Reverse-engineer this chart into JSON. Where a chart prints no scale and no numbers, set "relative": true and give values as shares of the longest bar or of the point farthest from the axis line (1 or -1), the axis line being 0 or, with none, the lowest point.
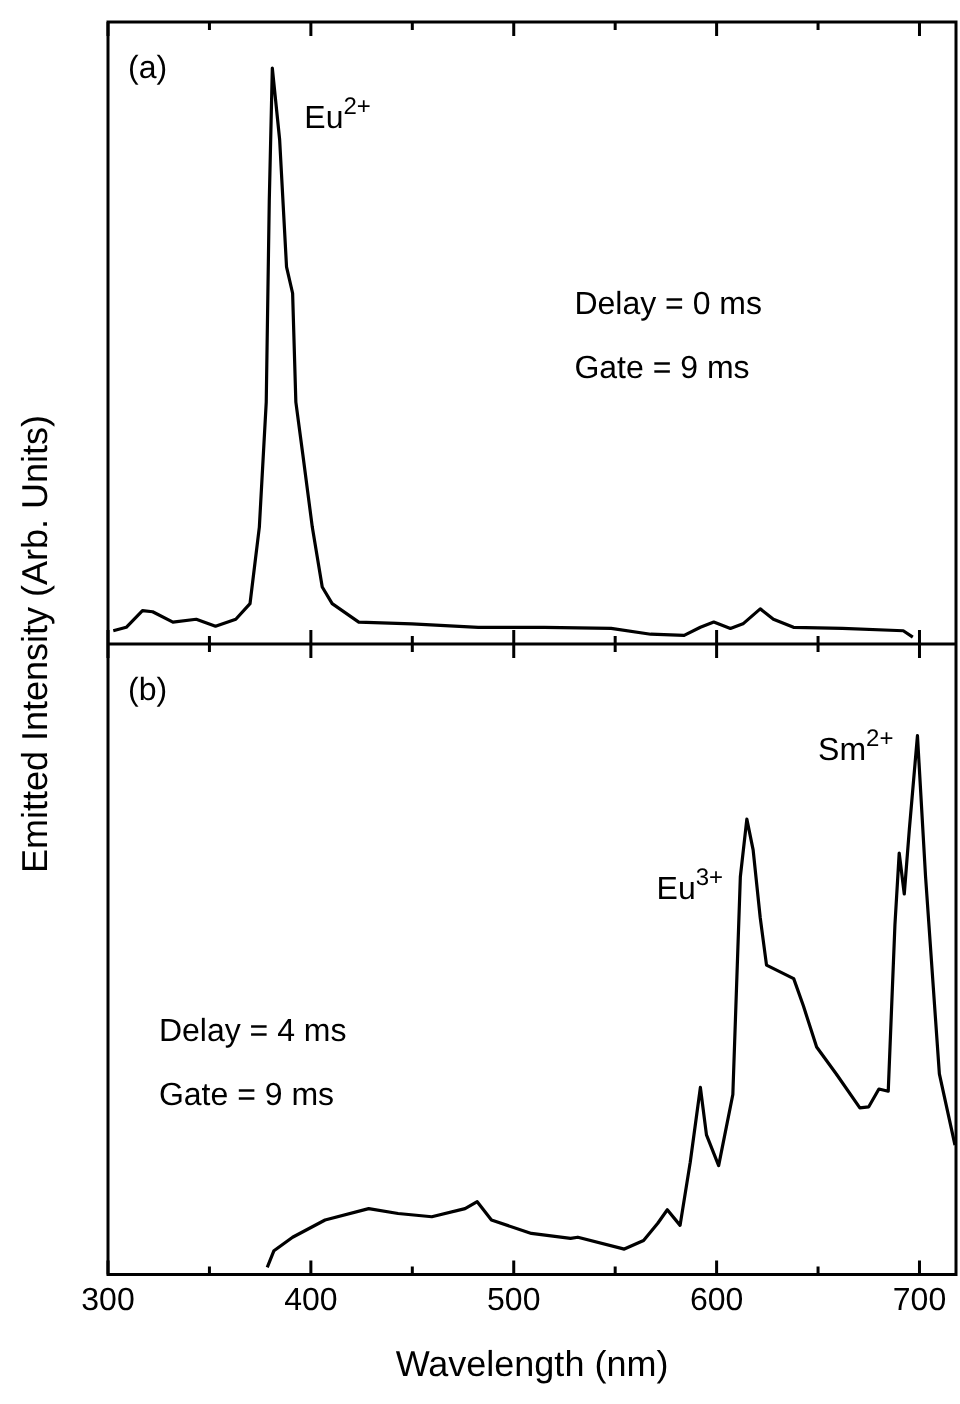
{
  "chart_data": [
    {
      "type": "line",
      "relative": true,
      "ylabel": "Emitted Intensity (Arb. Units)",
      "xlim": [
        300,
        718
      ],
      "xticks": [
        300,
        {
          "value": 350,
          "label": null
        },
        400,
        {
          "value": 450,
          "label": null
        },
        500,
        {
          "value": 550,
          "label": null
        },
        600,
        {
          "value": 650,
          "label": null
        },
        700
      ],
      "tick_labels": false,
      "grid": false,
      "legend": false,
      "marker": "none",
      "line_style": "solid",
      "annotations": [
        "(a)",
        "Delay = 0 ms",
        "Gate = 9 ms",
        {
          "text": "Eu$^{2+}$",
          "x": 381,
          "y": 1.0
        }
      ],
      "series": [
        {
          "color": "#000000",
          "x": [
            302.6,
            309,
            317,
            322,
            332,
            343.5,
            353,
            363,
            370,
            374.6,
            378,
            379.5,
            381,
            384.6,
            388,
            391,
            392.6,
            396,
            400.7,
            405.6,
            410.5,
            423.6,
            449.8,
            482.5,
            515,
            548,
            567.5,
            584,
            592,
            598.6,
            606.8,
            613,
            621.5,
            628,
            637.9,
            662,
            692,
            696.7
          ],
          "values": [
            0.023,
            0.029,
            0.058,
            0.056,
            0.038,
            0.043,
            0.031,
            0.043,
            0.07,
            0.203,
            0.42,
            0.77,
            1.0,
            0.876,
            0.655,
            0.609,
            0.42,
            0.33,
            0.203,
            0.099,
            0.07,
            0.038,
            0.035,
            0.029,
            0.029,
            0.027,
            0.017,
            0.015,
            0.029,
            0.038,
            0.027,
            0.035,
            0.061,
            0.043,
            0.029,
            0.027,
            0.023,
            0.012
          ]
        }
      ]
    },
    {
      "type": "line",
      "relative": true,
      "xlabel": "Wavelength (nm)",
      "xlim": [
        300,
        718
      ],
      "xticks": [
        300,
        {
          "value": 350,
          "label": null
        },
        400,
        {
          "value": 450,
          "label": null
        },
        500,
        {
          "value": 550,
          "label": null
        },
        600,
        {
          "value": 650,
          "label": null
        },
        700
      ],
      "tick_labels": "x",
      "grid": false,
      "legend": false,
      "marker": "none",
      "line_style": "solid",
      "annotations": [
        "(b)",
        "Delay = 4 ms",
        "Gate = 9 ms",
        {
          "text": "Eu$^{3+}$",
          "x": 615,
          "y": 0.845
        },
        {
          "text": "Sm$^{2+}$",
          "x": 699,
          "y": 1.0
        }
      ],
      "series": [
        {
          "color": "#000000",
          "x": [
            378.5,
            381.8,
            391,
            407,
            428.5,
            443,
            459.6,
            476,
            482,
            489,
            508.7,
            528,
            531.6,
            554.5,
            564,
            571,
            575.7,
            582,
            587,
            592,
            595,
            601,
            608,
            611.7,
            614.9,
            618,
            621.5,
            624.6,
            638,
            642.8,
            649.3,
            659,
            670.6,
            675,
            680,
            684.6,
            687.9,
            690,
            692.5,
            695,
            699,
            703,
            709.8,
            717.5
          ],
          "values": [
            0.013,
            0.044,
            0.069,
            0.101,
            0.122,
            0.113,
            0.107,
            0.122,
            0.135,
            0.101,
            0.076,
            0.067,
            0.069,
            0.047,
            0.063,
            0.095,
            0.12,
            0.091,
            0.208,
            0.347,
            0.259,
            0.202,
            0.334,
            0.738,
            0.845,
            0.788,
            0.662,
            0.574,
            0.549,
            0.498,
            0.422,
            0.372,
            0.309,
            0.311,
            0.344,
            0.34,
            0.649,
            0.782,
            0.706,
            0.826,
            1.0,
            0.738,
            0.372,
            0.24
          ]
        }
      ]
    }
  ]
}
